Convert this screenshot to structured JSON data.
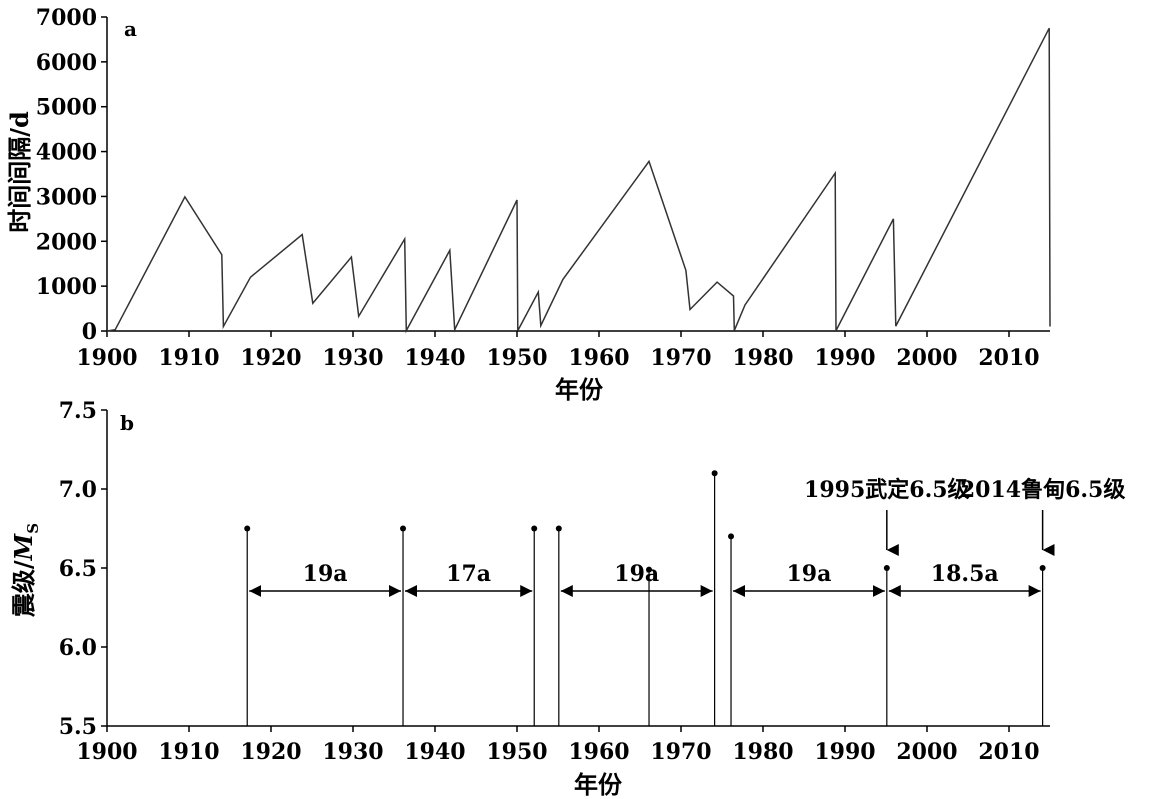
{
  "chart_data": [
    {
      "panel_label": "a",
      "type": "line",
      "xlabel": "年份",
      "ylabel": "时间间隔/d",
      "xlim": [
        1900,
        2015
      ],
      "ylim": [
        0,
        7000
      ],
      "xticks": [
        "1900",
        "1910",
        "1920",
        "1930",
        "1940",
        "1950",
        "1960",
        "1970",
        "1980",
        "1990",
        "2000",
        "2010"
      ],
      "yticks": [
        "0",
        "1000",
        "2000",
        "3000",
        "4000",
        "5000",
        "6000",
        "7000"
      ],
      "series": [
        {
          "x": [
            1900.0,
            1901.0,
            1909.5,
            1914.0,
            1914.2,
            1917.5,
            1923.8,
            1925.1,
            1929.8,
            1930.7,
            1936.3,
            1936.5,
            1941.8,
            1942.4,
            1950.0,
            1950.1,
            1952.6,
            1952.9,
            1955.6,
            1966.1,
            1970.6,
            1971.1,
            1974.4,
            1976.4,
            1976.5,
            1977.8,
            1988.8,
            1988.9,
            1995.9,
            1996.2,
            2014.9,
            2015.0
          ],
          "y": [
            0,
            30,
            2990,
            1700,
            100,
            1200,
            2150,
            620,
            1650,
            330,
            2050,
            10,
            1800,
            30,
            2920,
            10,
            870,
            120,
            1150,
            3780,
            1350,
            480,
            1090,
            780,
            10,
            580,
            3520,
            10,
            2500,
            110,
            6750,
            100
          ]
        }
      ]
    },
    {
      "panel_label": "b",
      "type": "scatter",
      "xlabel": "年份",
      "ylabel_main": "震级/",
      "ylabel_m": "M",
      "ylabel_sub": "S",
      "xlim": [
        1900,
        2015
      ],
      "ylim": [
        5.5,
        7.5
      ],
      "xticks": [
        "1900",
        "1910",
        "1920",
        "1930",
        "1940",
        "1950",
        "1960",
        "1970",
        "1980",
        "1990",
        "2000",
        "2010"
      ],
      "yticks": [
        "5.5",
        "6.0",
        "6.5",
        "7.0",
        "7.5"
      ],
      "points": [
        {
          "x": 1917.1,
          "y": 6.75
        },
        {
          "x": 1936.1,
          "y": 6.75
        },
        {
          "x": 1952.1,
          "y": 6.75
        },
        {
          "x": 1955.1,
          "y": 6.75
        },
        {
          "x": 1966.1,
          "y": 6.49
        },
        {
          "x": 1974.1,
          "y": 7.1
        },
        {
          "x": 1976.1,
          "y": 6.7
        },
        {
          "x": 1995.1,
          "y": 6.5
        },
        {
          "x": 2014.1,
          "y": 6.5
        }
      ],
      "intervals": [
        {
          "label": "19a",
          "from": 1917.1,
          "to": 1936.1
        },
        {
          "label": "17a",
          "from": 1936.1,
          "to": 1952.1
        },
        {
          "label": "19a",
          "from": 1955.1,
          "to": 1974.1
        },
        {
          "label": "19a",
          "from": 1976.1,
          "to": 1995.1
        },
        {
          "label": "18.5a",
          "from": 1995.1,
          "to": 2014.1
        }
      ],
      "annotations": [
        {
          "text": "1995武定6.5级",
          "x": 1995.1
        },
        {
          "text": "2014鲁甸6.5级",
          "x": 2014.1
        }
      ]
    }
  ]
}
